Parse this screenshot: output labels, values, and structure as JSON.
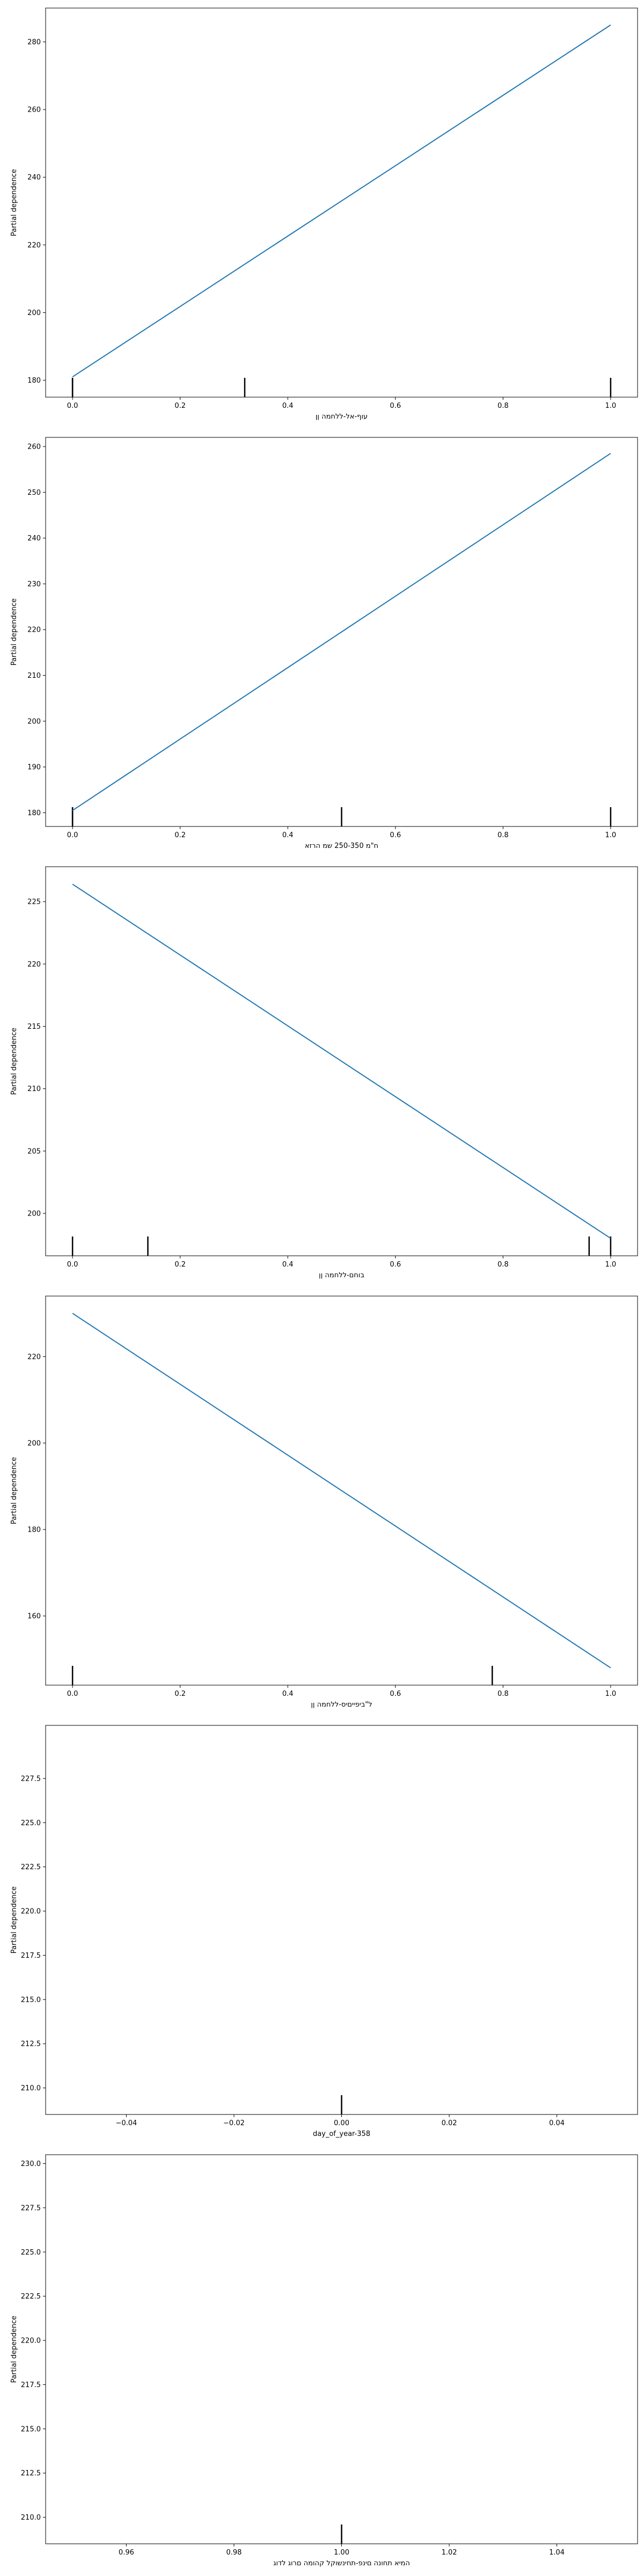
{
  "chart_data": [
    {
      "type": "line",
      "ylabel": "Partial dependence",
      "xlabel": "עוף-אל-ללחמה ןן",
      "x": [
        0.0,
        1.0
      ],
      "series": [
        {
          "values": [
            181,
            285
          ],
          "color": "#1f77b4"
        }
      ],
      "xlim": [
        -0.05,
        1.05
      ],
      "ylim": [
        175,
        290
      ],
      "xticks": [
        0.0,
        0.2,
        0.4,
        0.6,
        0.8,
        1.0
      ],
      "xtick_labels": [
        "0.0",
        "0.2",
        "0.4",
        "0.6",
        "0.8",
        "1.0"
      ],
      "yticks": [
        180,
        200,
        220,
        240,
        260,
        280
      ],
      "ytick_labels": [
        "180",
        "200",
        "220",
        "240",
        "260",
        "280"
      ],
      "deciles": [
        0.0,
        0.0,
        0.32,
        1.0
      ]
    },
    {
      "type": "line",
      "ylabel": "Partial dependence",
      "xlabel": "ח\"מ 250-350 שמ הרזא",
      "x": [
        0.0,
        1.0
      ],
      "series": [
        {
          "values": [
            180.5,
            258.5
          ],
          "color": "#1f77b4"
        }
      ],
      "xlim": [
        -0.05,
        1.05
      ],
      "ylim": [
        177,
        262
      ],
      "xticks": [
        0.0,
        0.2,
        0.4,
        0.6,
        0.8,
        1.0
      ],
      "xtick_labels": [
        "0.0",
        "0.2",
        "0.4",
        "0.6",
        "0.8",
        "1.0"
      ],
      "yticks": [
        180,
        190,
        200,
        210,
        220,
        230,
        240,
        250,
        260
      ],
      "ytick_labels": [
        "180",
        "190",
        "200",
        "210",
        "220",
        "230",
        "240",
        "250",
        "260"
      ],
      "deciles": [
        0.0,
        0.0,
        0.5,
        1.0
      ]
    },
    {
      "type": "line",
      "ylabel": "Partial dependence",
      "xlabel": "בוחם-ללחמה ןן",
      "x": [
        0.0,
        1.0
      ],
      "series": [
        {
          "values": [
            226.4,
            198.0
          ],
          "color": "#1f77b4"
        }
      ],
      "xlim": [
        -0.05,
        1.05
      ],
      "ylim": [
        196.6,
        227.8
      ],
      "xticks": [
        0.0,
        0.2,
        0.4,
        0.6,
        0.8,
        1.0
      ],
      "xtick_labels": [
        "0.0",
        "0.2",
        "0.4",
        "0.6",
        "0.8",
        "1.0"
      ],
      "yticks": [
        200,
        205,
        210,
        215,
        220,
        225
      ],
      "ytick_labels": [
        "200",
        "205",
        "210",
        "215",
        "220",
        "225"
      ],
      "deciles": [
        0.0,
        0.14,
        0.96,
        1.0
      ]
    },
    {
      "type": "line",
      "ylabel": "Partial dependence",
      "xlabel": "ל\"ביפייםיס-ללחמה ןן",
      "x": [
        0.0,
        1.0
      ],
      "series": [
        {
          "values": [
            230,
            148
          ],
          "color": "#1f77b4"
        }
      ],
      "xlim": [
        -0.05,
        1.05
      ],
      "ylim": [
        144,
        234
      ],
      "xticks": [
        0.0,
        0.2,
        0.4,
        0.6,
        0.8,
        1.0
      ],
      "xtick_labels": [
        "0.0",
        "0.2",
        "0.4",
        "0.6",
        "0.8",
        "1.0"
      ],
      "yticks": [
        160,
        180,
        200,
        220
      ],
      "ytick_labels": [
        "160",
        "180",
        "200",
        "220"
      ],
      "deciles": [
        0.0,
        0.78
      ]
    },
    {
      "type": "line",
      "ylabel": "Partial dependence",
      "xlabel": "day_of_year-358",
      "x": [],
      "series": [
        {
          "values": [],
          "color": "#1f77b4"
        }
      ],
      "xlim": [
        -0.055,
        0.055
      ],
      "ylim": [
        208.5,
        230.5
      ],
      "xticks": [
        -0.04,
        -0.02,
        0.0,
        0.02,
        0.04
      ],
      "xtick_labels": [
        "−0.04",
        "−0.02",
        "0.00",
        "0.02",
        "0.04"
      ],
      "yticks": [
        210.0,
        212.5,
        215.0,
        217.5,
        220.0,
        222.5,
        225.0,
        227.5
      ],
      "ytick_labels": [
        "210.0",
        "212.5",
        "215.0",
        "217.5",
        "220.0",
        "222.5",
        "225.0",
        "227.5"
      ],
      "deciles": [
        0.0
      ]
    },
    {
      "type": "line",
      "ylabel": "Partial dependence",
      "xlabel": "המיא תחונה םינפ-תחינשוקל קהומה םרוג לדוג",
      "x": [],
      "series": [
        {
          "values": [],
          "color": "#1f77b4"
        }
      ],
      "xlim": [
        0.945,
        1.055
      ],
      "ylim": [
        208.5,
        230.5
      ],
      "xticks": [
        0.96,
        0.98,
        1.0,
        1.02,
        1.04
      ],
      "xtick_labels": [
        "0.96",
        "0.98",
        "1.00",
        "1.02",
        "1.04"
      ],
      "yticks": [
        210.0,
        212.5,
        215.0,
        217.5,
        220.0,
        222.5,
        225.0,
        227.5,
        230.0
      ],
      "ytick_labels": [
        "210.0",
        "212.5",
        "215.0",
        "217.5",
        "220.0",
        "222.5",
        "225.0",
        "227.5",
        "230.0"
      ],
      "deciles": [
        1.0
      ]
    }
  ]
}
